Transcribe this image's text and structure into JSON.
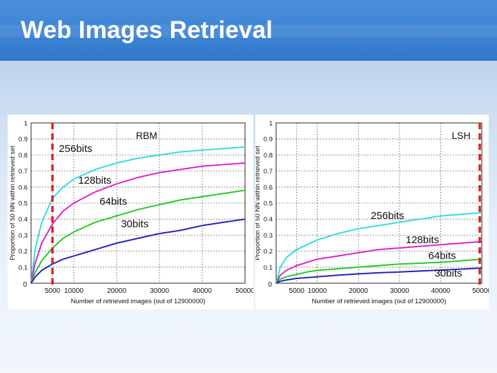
{
  "slide": {
    "title": "Web Images Retrieval"
  },
  "theme": {
    "title_bg": "#3f86d6",
    "title_text": "#ffffff",
    "marker": "#e02020"
  },
  "chart_data": [
    {
      "type": "line",
      "panel_label": "RBM",
      "xlabel": "Number of retrieved images (out of 12900000)",
      "ylabel": "Proportion of 50 NN within retrieved set",
      "xlim": [
        0,
        50000
      ],
      "ylim": [
        0,
        1
      ],
      "x_ticks": [
        5000,
        10000,
        20000,
        30000,
        40000,
        50000
      ],
      "y_ticks": [
        0,
        0.1,
        0.2,
        0.3,
        0.4,
        0.5,
        0.6,
        0.7,
        0.8,
        0.9,
        1
      ],
      "x_tick_labels": [
        "5000",
        "10000",
        "20000",
        "30000",
        "40000",
        "50000"
      ],
      "y_tick_labels": [
        "0",
        "0.1",
        "0.2",
        "0.3",
        "0.4",
        "0.5",
        "0.6",
        "0.7",
        "0.8",
        "0.9",
        "1"
      ],
      "grid": true,
      "marker_x": 5000,
      "series": [
        {
          "name": "256bits",
          "color": "#33dddd",
          "x": [
            0,
            1000,
            2500,
            5000,
            7500,
            10000,
            15000,
            20000,
            25000,
            30000,
            35000,
            40000,
            45000,
            50000
          ],
          "values": [
            0,
            0.22,
            0.38,
            0.53,
            0.6,
            0.65,
            0.71,
            0.75,
            0.78,
            0.8,
            0.82,
            0.83,
            0.84,
            0.85
          ]
        },
        {
          "name": "128bits",
          "color": "#dd22cc",
          "x": [
            0,
            1000,
            2500,
            5000,
            7500,
            10000,
            15000,
            20000,
            25000,
            30000,
            35000,
            40000,
            45000,
            50000
          ],
          "values": [
            0,
            0.13,
            0.25,
            0.37,
            0.45,
            0.5,
            0.57,
            0.62,
            0.66,
            0.69,
            0.71,
            0.73,
            0.74,
            0.75
          ]
        },
        {
          "name": "64bits",
          "color": "#22cc22",
          "x": [
            0,
            1000,
            2500,
            5000,
            7500,
            10000,
            15000,
            20000,
            25000,
            30000,
            35000,
            40000,
            45000,
            50000
          ],
          "values": [
            0,
            0.07,
            0.14,
            0.22,
            0.28,
            0.32,
            0.38,
            0.42,
            0.46,
            0.49,
            0.52,
            0.54,
            0.56,
            0.58
          ]
        },
        {
          "name": "30bits",
          "color": "#2222bb",
          "x": [
            0,
            1000,
            2500,
            5000,
            7500,
            10000,
            15000,
            20000,
            25000,
            30000,
            35000,
            40000,
            45000,
            50000
          ],
          "values": [
            0,
            0.04,
            0.08,
            0.12,
            0.15,
            0.17,
            0.21,
            0.25,
            0.28,
            0.31,
            0.33,
            0.36,
            0.38,
            0.4
          ]
        }
      ]
    },
    {
      "type": "line",
      "panel_label": "LSH",
      "xlabel": "Number of retrieved images (out of 12900000)",
      "ylabel": "Proportion of 50 NN within retrieved set",
      "xlim": [
        0,
        50000
      ],
      "ylim": [
        0,
        1
      ],
      "x_ticks": [
        5000,
        10000,
        20000,
        30000,
        40000,
        50000
      ],
      "y_ticks": [
        0,
        0.1,
        0.2,
        0.3,
        0.4,
        0.5,
        0.6,
        0.7,
        0.8,
        0.9,
        1
      ],
      "x_tick_labels": [
        "5000",
        "10000",
        "20000",
        "30000",
        "40000",
        "50000"
      ],
      "y_tick_labels": [
        "0",
        "0.1",
        "0.2",
        "0.3",
        "0.4",
        "0.5",
        "0.6",
        "0.7",
        "0.8",
        "0.9",
        "1"
      ],
      "grid": true,
      "marker_x": 50000,
      "series": [
        {
          "name": "256bits",
          "color": "#33dddd",
          "x": [
            0,
            1000,
            2500,
            5000,
            7500,
            10000,
            15000,
            20000,
            25000,
            30000,
            35000,
            40000,
            45000,
            50000
          ],
          "values": [
            0,
            0.1,
            0.16,
            0.21,
            0.24,
            0.27,
            0.31,
            0.34,
            0.36,
            0.38,
            0.4,
            0.42,
            0.43,
            0.44
          ]
        },
        {
          "name": "128bits",
          "color": "#dd22cc",
          "x": [
            0,
            1000,
            2500,
            5000,
            7500,
            10000,
            15000,
            20000,
            25000,
            30000,
            35000,
            40000,
            45000,
            50000
          ],
          "values": [
            0,
            0.05,
            0.08,
            0.11,
            0.13,
            0.15,
            0.17,
            0.19,
            0.21,
            0.22,
            0.23,
            0.24,
            0.25,
            0.26
          ]
        },
        {
          "name": "64bits",
          "color": "#22cc22",
          "x": [
            0,
            1000,
            2500,
            5000,
            7500,
            10000,
            15000,
            20000,
            25000,
            30000,
            35000,
            40000,
            45000,
            50000
          ],
          "values": [
            0,
            0.025,
            0.04,
            0.055,
            0.07,
            0.08,
            0.09,
            0.1,
            0.11,
            0.12,
            0.125,
            0.13,
            0.14,
            0.15
          ]
        },
        {
          "name": "30bits",
          "color": "#2222bb",
          "x": [
            0,
            1000,
            2500,
            5000,
            7500,
            10000,
            15000,
            20000,
            25000,
            30000,
            35000,
            40000,
            45000,
            50000
          ],
          "values": [
            0,
            0.012,
            0.02,
            0.03,
            0.035,
            0.04,
            0.05,
            0.058,
            0.065,
            0.07,
            0.076,
            0.082,
            0.088,
            0.095
          ]
        }
      ]
    }
  ]
}
